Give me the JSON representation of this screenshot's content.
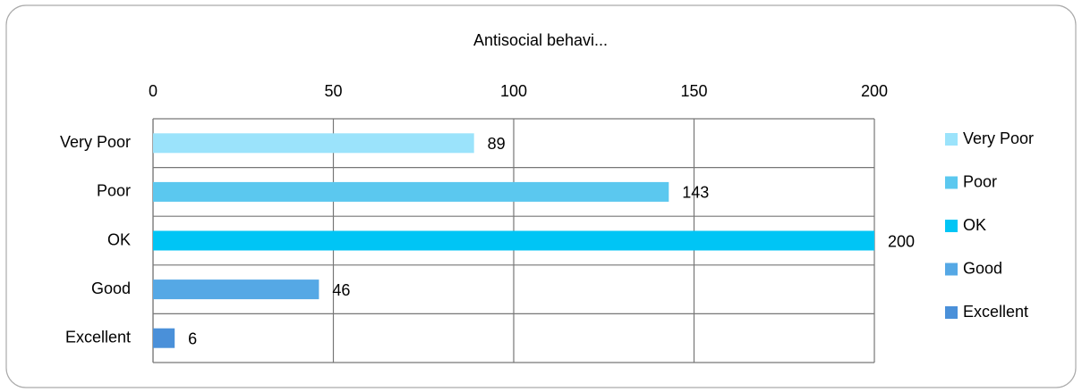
{
  "chart_data": {
    "type": "bar",
    "orientation": "horizontal",
    "title": "Antisocial behavi...",
    "categories": [
      "Very Poor",
      "Poor",
      "OK",
      "Good",
      "Excellent"
    ],
    "values": [
      89,
      143,
      200,
      46,
      6
    ],
    "colors": [
      "#9be3fb",
      "#5bc8ef",
      "#00c5f5",
      "#55a8e5",
      "#4a90d9"
    ],
    "xlim": [
      0,
      200
    ],
    "xticks": [
      0,
      50,
      100,
      150,
      200
    ],
    "grid": true,
    "legend": "right"
  }
}
